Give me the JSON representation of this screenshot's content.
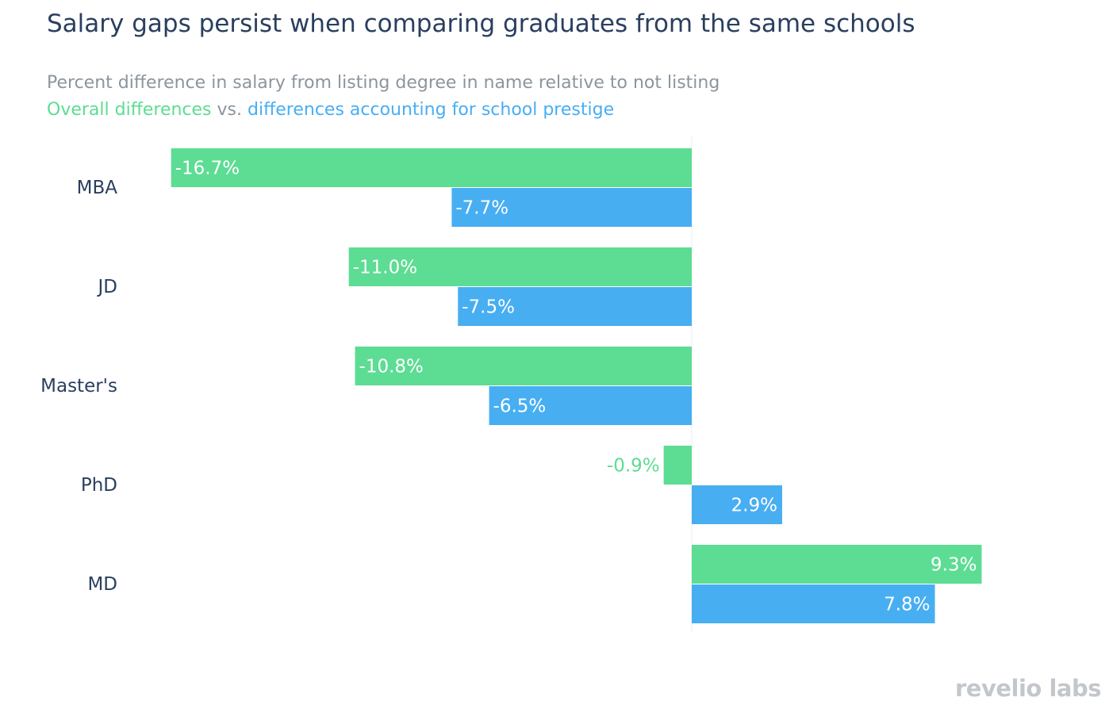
{
  "title": "Salary gaps persist when comparing graduates from the same schools",
  "subtitle": "Percent difference in salary from listing degree in name relative to not listing",
  "legend": {
    "series1_label": "Overall differences",
    "separator": "vs.",
    "series2_label": "differences accounting for school prestige",
    "separator_color": "#8c959c"
  },
  "logo": "revelio labs",
  "chart_data": {
    "type": "bar",
    "orientation": "horizontal",
    "categories": [
      "MBA",
      "JD",
      "Master's",
      "PhD",
      "MD"
    ],
    "series": [
      {
        "name": "Overall differences",
        "color": "#5ddc93",
        "values": [
          -16.7,
          -11.0,
          -10.8,
          -0.9,
          9.3
        ],
        "labels": [
          "-16.7%",
          "-11.0%",
          "-10.8%",
          "-0.9%",
          "9.3%"
        ]
      },
      {
        "name": "differences accounting for school prestige",
        "color": "#48aef2",
        "values": [
          -7.7,
          -7.5,
          -6.5,
          2.9,
          7.8
        ],
        "labels": [
          "-7.7%",
          "-7.5%",
          "-6.5%",
          "2.9%",
          "7.8%"
        ]
      }
    ],
    "grid": false,
    "zero_line": true,
    "label_color_inside": "#ffffff",
    "category_label_color": "#2a3f5f"
  }
}
